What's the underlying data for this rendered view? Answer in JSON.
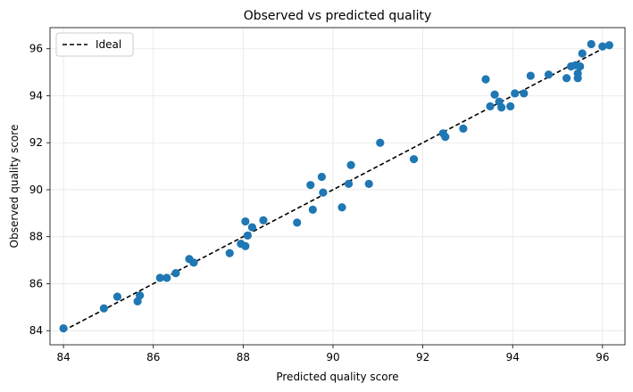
{
  "chart_data": {
    "type": "scatter",
    "title": "Observed vs predicted quality",
    "xlabel": "Predicted quality score",
    "ylabel": "Observed quality score",
    "xlim": [
      83.7,
      96.5
    ],
    "ylim": [
      83.4,
      96.9
    ],
    "xticks": [
      84,
      86,
      88,
      90,
      92,
      94,
      96
    ],
    "yticks": [
      84,
      86,
      88,
      90,
      92,
      94,
      96
    ],
    "grid": true,
    "legend_position": "top-left",
    "ideal_line": {
      "name": "Ideal",
      "x": [
        84,
        96.15
      ],
      "y": [
        84,
        96.15
      ],
      "color": "#000000",
      "style": "dashed"
    },
    "series": [
      {
        "color": "#1f77b4",
        "points": [
          [
            84.0,
            84.1
          ],
          [
            84.9,
            84.95
          ],
          [
            85.2,
            85.45
          ],
          [
            85.65,
            85.25
          ],
          [
            85.7,
            85.5
          ],
          [
            86.15,
            86.25
          ],
          [
            86.3,
            86.25
          ],
          [
            86.5,
            86.45
          ],
          [
            86.8,
            87.05
          ],
          [
            86.9,
            86.9
          ],
          [
            87.7,
            87.3
          ],
          [
            87.95,
            87.7
          ],
          [
            88.05,
            87.6
          ],
          [
            88.05,
            88.65
          ],
          [
            88.1,
            88.05
          ],
          [
            88.2,
            88.4
          ],
          [
            88.45,
            88.7
          ],
          [
            89.2,
            88.6
          ],
          [
            89.5,
            90.2
          ],
          [
            89.55,
            89.15
          ],
          [
            89.75,
            90.55
          ],
          [
            89.78,
            89.88
          ],
          [
            90.2,
            89.25
          ],
          [
            90.35,
            90.25
          ],
          [
            90.4,
            91.05
          ],
          [
            90.8,
            90.25
          ],
          [
            91.05,
            92.0
          ],
          [
            91.8,
            91.3
          ],
          [
            92.45,
            92.4
          ],
          [
            92.5,
            92.25
          ],
          [
            92.9,
            92.6
          ],
          [
            93.4,
            94.7
          ],
          [
            93.5,
            93.55
          ],
          [
            93.6,
            94.05
          ],
          [
            93.7,
            93.75
          ],
          [
            93.75,
            93.5
          ],
          [
            93.95,
            93.55
          ],
          [
            94.05,
            94.1
          ],
          [
            94.25,
            94.1
          ],
          [
            94.4,
            94.85
          ],
          [
            94.8,
            94.9
          ],
          [
            95.2,
            94.75
          ],
          [
            95.3,
            95.25
          ],
          [
            95.4,
            95.3
          ],
          [
            95.45,
            94.95
          ],
          [
            95.45,
            94.75
          ],
          [
            95.5,
            95.25
          ],
          [
            95.55,
            95.8
          ],
          [
            95.75,
            96.2
          ],
          [
            96.0,
            96.1
          ],
          [
            96.15,
            96.15
          ]
        ]
      }
    ]
  }
}
